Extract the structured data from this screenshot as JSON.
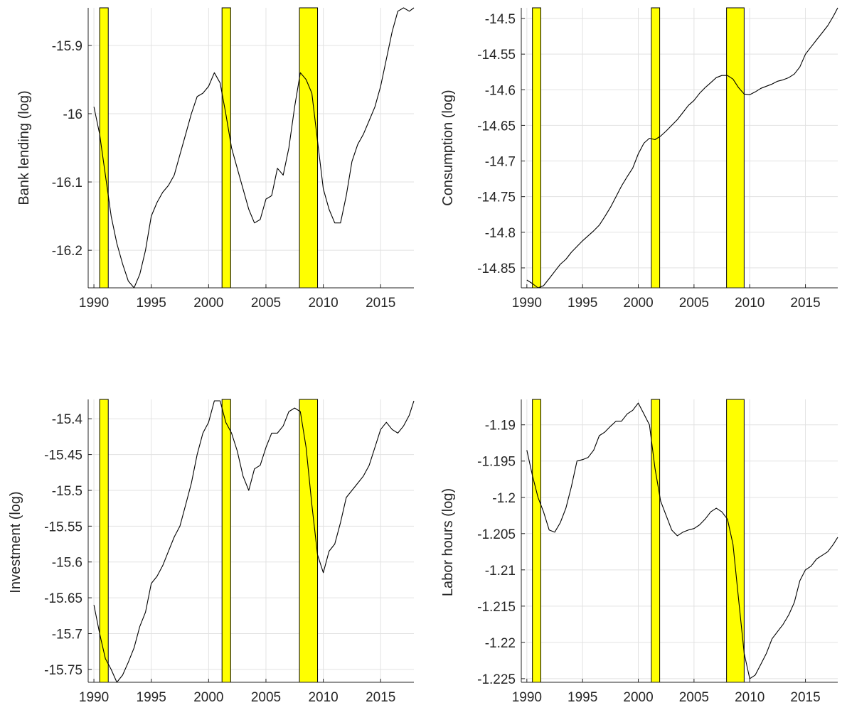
{
  "figure": {
    "recession_style": {
      "fill": "#ffff00",
      "edge": "#000000"
    },
    "grid": true,
    "line_color": "#000000"
  },
  "recessions": [
    [
      1990.5,
      1991.25
    ],
    [
      2001.17,
      2001.92
    ],
    [
      2007.92,
      2009.5
    ]
  ],
  "chart_data": [
    {
      "type": "line",
      "title": "",
      "xlabel": "",
      "ylabel": "Bank lending (log)",
      "xlim": [
        1989.5,
        2017.9
      ],
      "ylim": [
        -16.255,
        -15.845
      ],
      "xticks": [
        1990,
        1995,
        2000,
        2005,
        2010,
        2015
      ],
      "xtick_labels": [
        "1990",
        "1995",
        "2000",
        "2005",
        "2010",
        "2015"
      ],
      "yticks": [
        -16.2,
        -16.1,
        -16.0,
        -15.9
      ],
      "ytick_labels": [
        "-16.2",
        "-16.1",
        "-16",
        "-15.9"
      ],
      "grid": true,
      "series": [
        {
          "x": [
            1990.0,
            1990.5,
            1991.0,
            1991.5,
            1992.0,
            1992.5,
            1993.0,
            1993.5,
            1994.0,
            1994.5,
            1995.0,
            1995.5,
            1996.0,
            1996.5,
            1997.0,
            1997.5,
            1998.0,
            1998.5,
            1999.0,
            1999.5,
            2000.0,
            2000.5,
            2001.0,
            2001.5,
            2002.0,
            2002.5,
            2003.0,
            2003.5,
            2004.0,
            2004.5,
            2005.0,
            2005.5,
            2006.0,
            2006.5,
            2007.0,
            2007.5,
            2008.0,
            2008.5,
            2009.0,
            2009.5,
            2010.0,
            2010.5,
            2011.0,
            2011.5,
            2012.0,
            2012.5,
            2013.0,
            2013.5,
            2014.0,
            2014.5,
            2015.0,
            2015.5,
            2016.0,
            2016.5,
            2017.0,
            2017.5,
            2017.9
          ],
          "values": [
            -15.99,
            -16.03,
            -16.09,
            -16.15,
            -16.19,
            -16.22,
            -16.245,
            -16.255,
            -16.235,
            -16.2,
            -16.15,
            -16.13,
            -16.115,
            -16.105,
            -16.09,
            -16.06,
            -16.03,
            -16.0,
            -15.975,
            -15.97,
            -15.96,
            -15.94,
            -15.955,
            -16.0,
            -16.05,
            -16.08,
            -16.11,
            -16.14,
            -16.16,
            -16.155,
            -16.125,
            -16.12,
            -16.08,
            -16.09,
            -16.05,
            -15.99,
            -15.94,
            -15.95,
            -15.97,
            -16.04,
            -16.11,
            -16.14,
            -16.16,
            -16.16,
            -16.12,
            -16.07,
            -16.045,
            -16.03,
            -16.01,
            -15.99,
            -15.96,
            -15.92,
            -15.88,
            -15.85,
            -15.845,
            -15.85,
            -15.845
          ]
        }
      ]
    },
    {
      "type": "line",
      "title": "",
      "xlabel": "",
      "ylabel": "Consumption (log)",
      "xlim": [
        1989.5,
        2017.9
      ],
      "ylim": [
        -14.878,
        -14.485
      ],
      "xticks": [
        1990,
        1995,
        2000,
        2005,
        2010,
        2015
      ],
      "xtick_labels": [
        "1990",
        "1995",
        "2000",
        "2005",
        "2010",
        "2015"
      ],
      "yticks": [
        -14.85,
        -14.8,
        -14.75,
        -14.7,
        -14.65,
        -14.6,
        -14.55,
        -14.5
      ],
      "ytick_labels": [
        "-14.85",
        "-14.8",
        "-14.75",
        "-14.7",
        "-14.65",
        "-14.6",
        "-14.55",
        "-14.5"
      ],
      "grid": true,
      "series": [
        {
          "x": [
            1990.0,
            1990.5,
            1991.0,
            1991.5,
            1992.0,
            1992.5,
            1993.0,
            1993.5,
            1994.0,
            1994.5,
            1995.0,
            1995.5,
            1996.0,
            1996.5,
            1997.0,
            1997.5,
            1998.0,
            1998.5,
            1999.0,
            1999.5,
            2000.0,
            2000.5,
            2001.0,
            2001.5,
            2002.0,
            2002.5,
            2003.0,
            2003.5,
            2004.0,
            2004.5,
            2005.0,
            2005.5,
            2006.0,
            2006.5,
            2007.0,
            2007.5,
            2008.0,
            2008.5,
            2009.0,
            2009.5,
            2010.0,
            2010.5,
            2011.0,
            2011.5,
            2012.0,
            2012.5,
            2013.0,
            2013.5,
            2014.0,
            2014.5,
            2015.0,
            2015.5,
            2016.0,
            2016.5,
            2017.0,
            2017.5,
            2017.9
          ],
          "values": [
            -14.867,
            -14.872,
            -14.878,
            -14.875,
            -14.865,
            -14.855,
            -14.845,
            -14.838,
            -14.828,
            -14.82,
            -14.812,
            -14.805,
            -14.798,
            -14.79,
            -14.778,
            -14.765,
            -14.75,
            -14.735,
            -14.722,
            -14.71,
            -14.69,
            -14.675,
            -14.668,
            -14.67,
            -14.665,
            -14.658,
            -14.65,
            -14.642,
            -14.632,
            -14.622,
            -14.615,
            -14.605,
            -14.597,
            -14.59,
            -14.583,
            -14.58,
            -14.58,
            -14.585,
            -14.597,
            -14.606,
            -14.607,
            -14.603,
            -14.598,
            -14.595,
            -14.592,
            -14.588,
            -14.586,
            -14.583,
            -14.578,
            -14.568,
            -14.55,
            -14.54,
            -14.53,
            -14.52,
            -14.51,
            -14.497,
            -14.485
          ]
        }
      ]
    },
    {
      "type": "line",
      "title": "",
      "xlabel": "",
      "ylabel": "Investment (log)",
      "xlim": [
        1989.5,
        2017.9
      ],
      "ylim": [
        -15.768,
        -15.373
      ],
      "xticks": [
        1990,
        1995,
        2000,
        2005,
        2010,
        2015
      ],
      "xtick_labels": [
        "1990",
        "1995",
        "2000",
        "2005",
        "2010",
        "2015"
      ],
      "yticks": [
        -15.75,
        -15.7,
        -15.65,
        -15.6,
        -15.55,
        -15.5,
        -15.45,
        -15.4
      ],
      "ytick_labels": [
        "-15.75",
        "-15.7",
        "-15.65",
        "-15.6",
        "-15.55",
        "-15.5",
        "-15.45",
        "-15.4"
      ],
      "grid": true,
      "series": [
        {
          "x": [
            1990.0,
            1990.5,
            1991.0,
            1991.5,
            1992.0,
            1992.5,
            1993.0,
            1993.5,
            1994.0,
            1994.5,
            1995.0,
            1995.5,
            1996.0,
            1996.5,
            1997.0,
            1997.5,
            1998.0,
            1998.5,
            1999.0,
            1999.5,
            2000.0,
            2000.5,
            2001.0,
            2001.5,
            2002.0,
            2002.5,
            2003.0,
            2003.5,
            2004.0,
            2004.5,
            2005.0,
            2005.5,
            2006.0,
            2006.5,
            2007.0,
            2007.5,
            2008.0,
            2008.5,
            2009.0,
            2009.5,
            2010.0,
            2010.5,
            2011.0,
            2011.5,
            2012.0,
            2012.5,
            2013.0,
            2013.5,
            2014.0,
            2014.5,
            2015.0,
            2015.5,
            2016.0,
            2016.5,
            2017.0,
            2017.5,
            2017.9
          ],
          "values": [
            -15.66,
            -15.7,
            -15.735,
            -15.75,
            -15.768,
            -15.758,
            -15.74,
            -15.72,
            -15.69,
            -15.67,
            -15.63,
            -15.62,
            -15.605,
            -15.585,
            -15.565,
            -15.55,
            -15.52,
            -15.49,
            -15.45,
            -15.42,
            -15.405,
            -15.375,
            -15.375,
            -15.405,
            -15.42,
            -15.445,
            -15.48,
            -15.5,
            -15.47,
            -15.465,
            -15.44,
            -15.42,
            -15.42,
            -15.41,
            -15.39,
            -15.385,
            -15.39,
            -15.44,
            -15.52,
            -15.59,
            -15.615,
            -15.585,
            -15.575,
            -15.545,
            -15.51,
            -15.5,
            -15.49,
            -15.48,
            -15.465,
            -15.44,
            -15.415,
            -15.405,
            -15.415,
            -15.42,
            -15.41,
            -15.395,
            -15.375
          ]
        }
      ]
    },
    {
      "type": "line",
      "title": "",
      "xlabel": "",
      "ylabel": "Labor hours (log)",
      "xlim": [
        1989.5,
        2017.9
      ],
      "ylim": [
        -1.2255,
        -1.1865
      ],
      "xticks": [
        1990,
        1995,
        2000,
        2005,
        2010,
        2015
      ],
      "xtick_labels": [
        "1990",
        "1995",
        "2000",
        "2005",
        "2010",
        "2015"
      ],
      "yticks": [
        -1.225,
        -1.22,
        -1.215,
        -1.21,
        -1.205,
        -1.2,
        -1.195,
        -1.19
      ],
      "ytick_labels": [
        "-1.225",
        "-1.22",
        "-1.215",
        "-1.21",
        "-1.205",
        "-1.2",
        "-1.195",
        "-1.19"
      ],
      "grid": true,
      "series": [
        {
          "x": [
            1990.0,
            1990.5,
            1991.0,
            1991.5,
            1992.0,
            1992.5,
            1993.0,
            1993.5,
            1994.0,
            1994.5,
            1995.0,
            1995.5,
            1996.0,
            1996.5,
            1997.0,
            1997.5,
            1998.0,
            1998.5,
            1999.0,
            1999.5,
            2000.0,
            2000.5,
            2001.0,
            2001.5,
            2002.0,
            2002.5,
            2003.0,
            2003.5,
            2004.0,
            2004.5,
            2005.0,
            2005.5,
            2006.0,
            2006.5,
            2007.0,
            2007.5,
            2008.0,
            2008.5,
            2009.0,
            2009.5,
            2010.0,
            2010.5,
            2011.0,
            2011.5,
            2012.0,
            2012.5,
            2013.0,
            2013.5,
            2014.0,
            2014.5,
            2015.0,
            2015.5,
            2016.0,
            2016.5,
            2017.0,
            2017.5,
            2017.9
          ],
          "values": [
            -1.1935,
            -1.197,
            -1.2,
            -1.202,
            -1.2045,
            -1.2048,
            -1.2035,
            -1.2015,
            -1.1985,
            -1.195,
            -1.1948,
            -1.1945,
            -1.1935,
            -1.1915,
            -1.191,
            -1.1902,
            -1.1895,
            -1.1895,
            -1.1885,
            -1.188,
            -1.187,
            -1.1885,
            -1.19,
            -1.196,
            -1.2005,
            -1.2025,
            -1.2045,
            -1.2053,
            -1.2048,
            -1.2045,
            -1.2043,
            -1.2038,
            -1.203,
            -1.202,
            -1.2015,
            -1.202,
            -1.203,
            -1.2065,
            -1.214,
            -1.2215,
            -1.225,
            -1.2245,
            -1.223,
            -1.2215,
            -1.2195,
            -1.2185,
            -1.2175,
            -1.2162,
            -1.2145,
            -1.2115,
            -1.21,
            -1.2095,
            -1.2085,
            -1.208,
            -1.2075,
            -1.2065,
            -1.2055
          ]
        }
      ]
    }
  ]
}
